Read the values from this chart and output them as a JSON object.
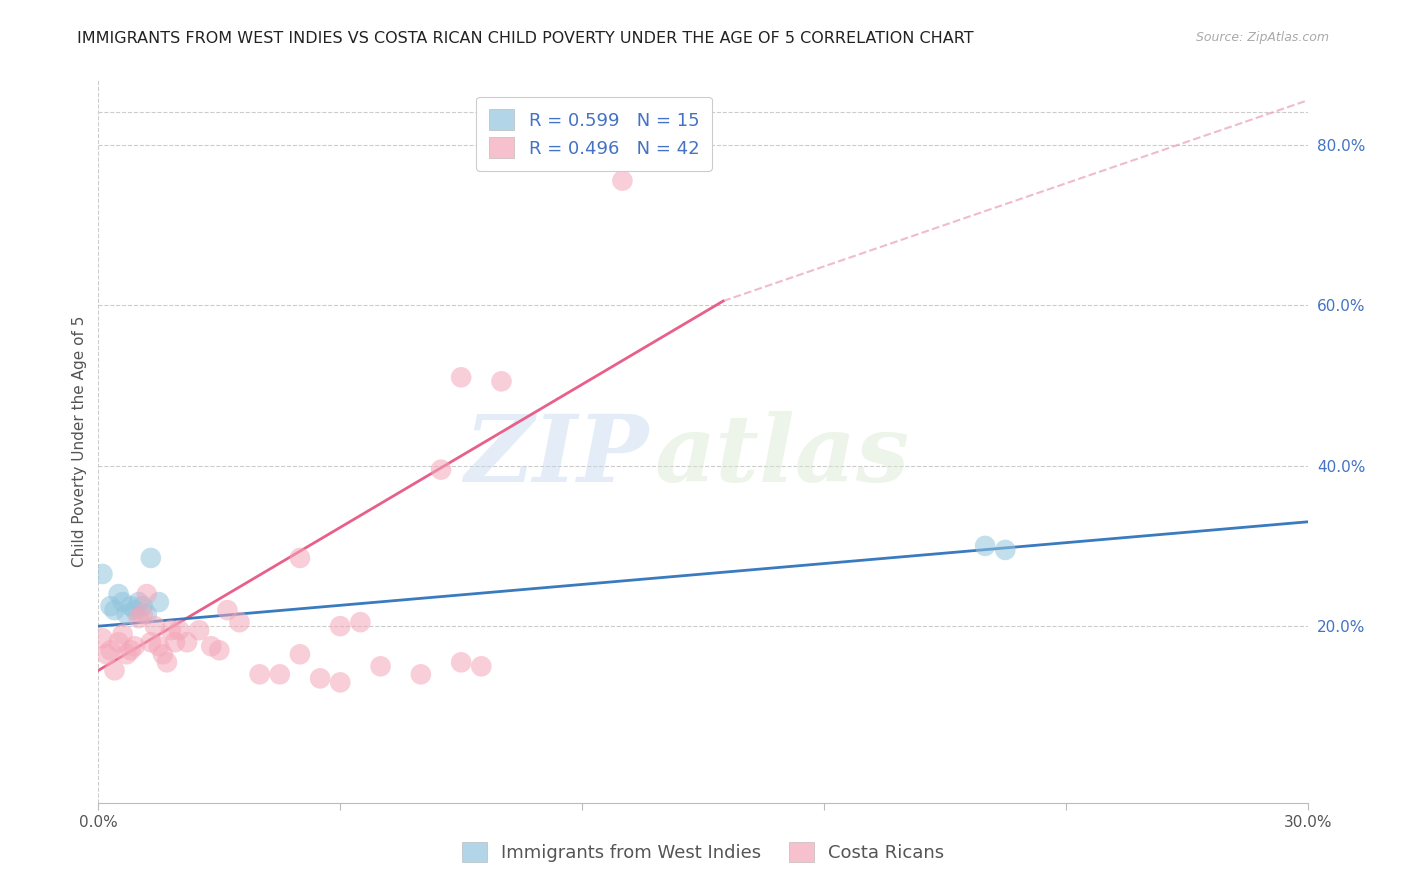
{
  "title": "IMMIGRANTS FROM WEST INDIES VS COSTA RICAN CHILD POVERTY UNDER THE AGE OF 5 CORRELATION CHART",
  "source": "Source: ZipAtlas.com",
  "ylabel": "Child Poverty Under the Age of 5",
  "xlim": [
    0.0,
    0.3
  ],
  "ylim": [
    -0.02,
    0.88
  ],
  "x_ticks": [
    0.0,
    0.06,
    0.12,
    0.18,
    0.24,
    0.3
  ],
  "y_ticks_right": [
    0.2,
    0.4,
    0.6,
    0.8
  ],
  "y_tick_labels_right": [
    "20.0%",
    "40.0%",
    "60.0%",
    "80.0%"
  ],
  "blue_color": "#92c5de",
  "pink_color": "#f4a6b8",
  "blue_line_color": "#3a7abf",
  "pink_line_color": "#e8608a",
  "dashed_line_color": "#e8a0b8",
  "watermark_zip": "ZIP",
  "watermark_atlas": "atlas",
  "blue_dots_x": [
    0.001,
    0.003,
    0.004,
    0.005,
    0.006,
    0.007,
    0.008,
    0.009,
    0.01,
    0.011,
    0.012,
    0.013,
    0.015,
    0.22,
    0.225
  ],
  "blue_dots_y": [
    0.265,
    0.225,
    0.22,
    0.24,
    0.23,
    0.215,
    0.225,
    0.22,
    0.23,
    0.225,
    0.215,
    0.285,
    0.23,
    0.3,
    0.295
  ],
  "pink_dots_x": [
    0.001,
    0.002,
    0.003,
    0.004,
    0.005,
    0.006,
    0.007,
    0.008,
    0.009,
    0.01,
    0.011,
    0.012,
    0.013,
    0.014,
    0.015,
    0.016,
    0.017,
    0.018,
    0.019,
    0.02,
    0.022,
    0.025,
    0.028,
    0.03,
    0.032,
    0.035,
    0.04,
    0.045,
    0.05,
    0.055,
    0.06,
    0.065,
    0.09,
    0.095,
    0.05,
    0.06,
    0.07,
    0.08,
    0.085,
    0.09,
    0.1,
    0.13
  ],
  "pink_dots_y": [
    0.185,
    0.165,
    0.17,
    0.145,
    0.18,
    0.19,
    0.165,
    0.17,
    0.175,
    0.21,
    0.215,
    0.24,
    0.18,
    0.2,
    0.175,
    0.165,
    0.155,
    0.195,
    0.18,
    0.195,
    0.18,
    0.195,
    0.175,
    0.17,
    0.22,
    0.205,
    0.14,
    0.14,
    0.165,
    0.135,
    0.13,
    0.205,
    0.155,
    0.15,
    0.285,
    0.2,
    0.15,
    0.14,
    0.395,
    0.51,
    0.505,
    0.755
  ],
  "blue_line_x": [
    0.0,
    0.3
  ],
  "blue_line_y": [
    0.2,
    0.33
  ],
  "pink_line_x": [
    0.0,
    0.155
  ],
  "pink_line_y": [
    0.145,
    0.605
  ],
  "dashed_line_x": [
    0.155,
    0.3
  ],
  "dashed_line_y": [
    0.605,
    0.855
  ],
  "background_color": "#ffffff",
  "grid_color": "#cccccc",
  "title_fontsize": 11.5,
  "axis_label_fontsize": 11,
  "tick_fontsize": 11,
  "legend_fontsize": 13
}
